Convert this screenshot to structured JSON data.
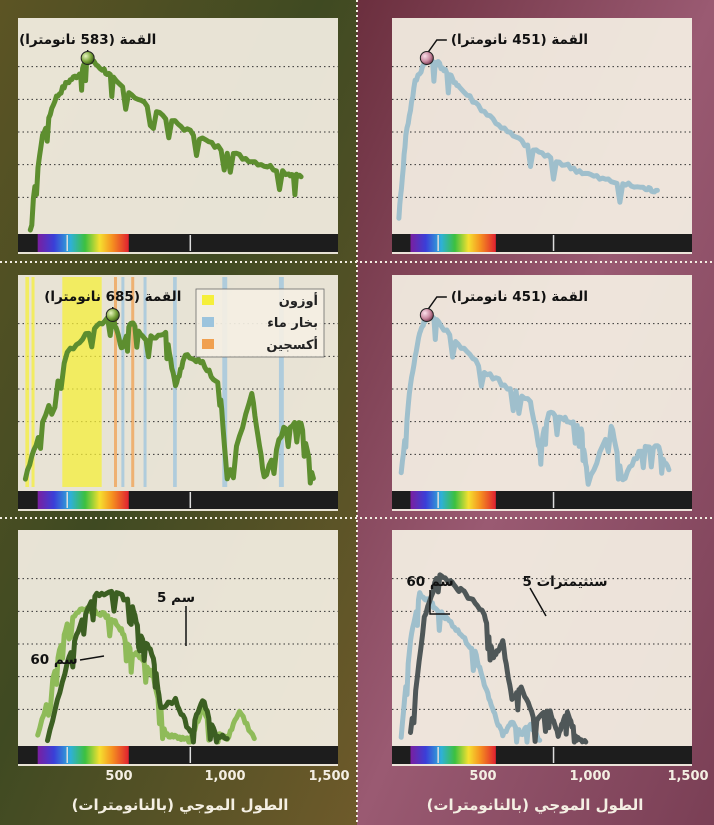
{
  "colors": {
    "plant_green": "#5d8e2f",
    "plant_green_light": "#8fbb59",
    "star_blue": "#9fbfcc",
    "star_dark": "#4f5758",
    "panel_bg": "#f4efe3",
    "bg_left": "#6b5a2e",
    "bg_right": "#8a4d62",
    "ozone": "#f5ef3a",
    "water_vapor": "#9cc4dd",
    "oxygen": "#f0a050"
  },
  "x_axis": {
    "ticks": [
      "500",
      "1,000",
      "1,500"
    ],
    "label": "الطول الموجي (بالنانومترات)",
    "range_nm": [
      300,
      1600
    ]
  },
  "legend": {
    "items": [
      {
        "label": "أوزون",
        "color": "#f5ef3a"
      },
      {
        "label": "بخار ماء",
        "color": "#9cc4dd"
      },
      {
        "label": "أكسجين",
        "color": "#f0a050"
      }
    ]
  },
  "chart_data": [
    {
      "type": "line",
      "panel": "top-left",
      "color": "#5d8e2f",
      "annotation": "القمة (583 نانومترا)",
      "peak_nm": 583,
      "x": [
        350,
        400,
        450,
        500,
        550,
        583,
        650,
        700,
        800,
        900,
        1000,
        1100,
        1200,
        1300,
        1400,
        1450
      ],
      "y": [
        0.08,
        0.55,
        0.76,
        0.86,
        0.91,
        1.0,
        0.93,
        0.86,
        0.75,
        0.66,
        0.57,
        0.49,
        0.43,
        0.38,
        0.33,
        0.31
      ]
    },
    {
      "type": "line",
      "panel": "top-right",
      "color": "#9fbfcc",
      "annotation": "القمة (451 نانومترا)",
      "peak_nm": 451,
      "x": [
        330,
        360,
        400,
        451,
        500,
        550,
        600,
        700,
        800,
        900,
        1000,
        1100,
        1200,
        1300,
        1400,
        1450
      ],
      "y": [
        0.08,
        0.55,
        0.86,
        1.0,
        0.97,
        0.9,
        0.82,
        0.69,
        0.57,
        0.48,
        0.41,
        0.35,
        0.3,
        0.27,
        0.24,
        0.23
      ]
    },
    {
      "type": "line",
      "panel": "middle-left",
      "color": "#5d8e2f",
      "annotation": "القمة (685 نانومترا)",
      "peak_nm": 685,
      "x": [
        330,
        400,
        500,
        600,
        685,
        720,
        760,
        820,
        900,
        940,
        980,
        1050,
        1120,
        1150,
        1250,
        1300,
        1380,
        1450,
        1500
      ],
      "y": [
        0.05,
        0.38,
        0.78,
        0.92,
        1.0,
        0.8,
        0.96,
        0.86,
        0.9,
        0.58,
        0.78,
        0.72,
        0.58,
        0.04,
        0.55,
        0.05,
        0.34,
        0.38,
        0.05
      ]
    },
    {
      "type": "line",
      "panel": "middle-right",
      "color": "#9fbfcc",
      "annotation": "القمة (451 نانومترا)",
      "peak_nm": 451,
      "x": [
        340,
        380,
        420,
        451,
        500,
        600,
        700,
        800,
        900,
        940,
        980,
        1050,
        1120,
        1150,
        1250,
        1300,
        1380,
        1450,
        1500
      ],
      "y": [
        0.08,
        0.6,
        0.9,
        1.0,
        0.96,
        0.82,
        0.68,
        0.58,
        0.5,
        0.22,
        0.44,
        0.4,
        0.34,
        0.03,
        0.36,
        0.04,
        0.22,
        0.24,
        0.1
      ]
    },
    {
      "type": "line",
      "panel": "bottom-left",
      "series": [
        {
          "name": "5 سم",
          "color": "#3c5f22",
          "x": [
            420,
            500,
            560,
            620,
            700,
            760,
            800,
            850,
            880,
            940,
            1000,
            1050,
            1100,
            1150
          ],
          "y": [
            0.02,
            0.45,
            0.72,
            0.86,
            0.88,
            0.8,
            0.62,
            0.5,
            0.2,
            0.25,
            0.05,
            0.25,
            0.05,
            0.02
          ]
        },
        {
          "name": "60 سم",
          "color": "#8fbb59",
          "x": [
            380,
            450,
            500,
            560,
            620,
            680,
            720,
            760,
            800,
            850,
            900,
            950,
            1000,
            1050,
            1100,
            1150,
            1200,
            1260
          ],
          "y": [
            0.03,
            0.42,
            0.7,
            0.78,
            0.76,
            0.72,
            0.65,
            0.52,
            0.5,
            0.38,
            0.05,
            0.02,
            0.02,
            0.2,
            0.05,
            0.02,
            0.18,
            0.02
          ]
        }
      ]
    },
    {
      "type": "line",
      "panel": "bottom-right",
      "series": [
        {
          "name": "5 سنتيمترات",
          "color": "#4f5758",
          "x": [
            380,
            440,
            500,
            560,
            620,
            700,
            740,
            780,
            820,
            860,
            920,
            980,
            1020,
            1060,
            1100,
            1140
          ],
          "y": [
            0.06,
            0.72,
            0.98,
            0.92,
            0.86,
            0.75,
            0.5,
            0.58,
            0.25,
            0.32,
            0.12,
            0.2,
            0.04,
            0.18,
            0.02,
            0.0
          ]
        },
        {
          "name": "60 سم",
          "color": "#9fbfcc",
          "x": [
            340,
            380,
            420,
            460,
            500,
            540,
            600,
            660,
            700,
            740,
            780,
            820,
            860,
            900,
            940
          ],
          "y": [
            0.04,
            0.6,
            0.86,
            0.82,
            0.76,
            0.72,
            0.62,
            0.52,
            0.34,
            0.18,
            0.04,
            0.12,
            0.05,
            0.1,
            0.01
          ]
        }
      ]
    }
  ]
}
